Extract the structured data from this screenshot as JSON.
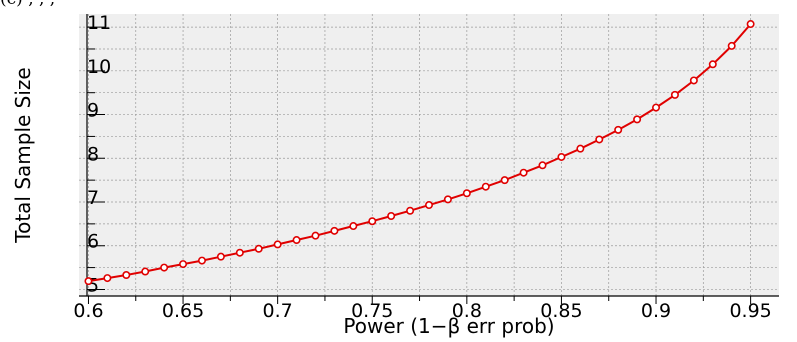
{
  "top_caption": "(c)          ,                                                  ,                          ,        ",
  "chart_data": {
    "type": "line",
    "title": "",
    "xlabel": "Power (1−β err prob)",
    "ylabel": "Total Sample Size",
    "xlim": [
      0.595,
      0.965
    ],
    "ylim": [
      4.85,
      11.3
    ],
    "x_ticks": [
      0.6,
      0.65,
      0.7,
      0.75,
      0.8,
      0.85,
      0.9,
      0.95
    ],
    "x_tick_labels": [
      "0.6",
      "0.65",
      "0.7",
      "0.75",
      "0.8",
      "0.85",
      "0.9",
      "0.95"
    ],
    "y_ticks": [
      5,
      6,
      7,
      8,
      9,
      10,
      11
    ],
    "y_tick_labels": [
      "5",
      "6",
      "7",
      "8",
      "9",
      "10",
      "11"
    ],
    "grid": true,
    "colors": {
      "line": "#e00000",
      "plot_bg": "#efefef",
      "grid": "#9a9a9a"
    },
    "series": [
      {
        "x": [
          0.6,
          0.61,
          0.62,
          0.63,
          0.64,
          0.65,
          0.66,
          0.67,
          0.68,
          0.69,
          0.7,
          0.71,
          0.72,
          0.73,
          0.74,
          0.75,
          0.76,
          0.77,
          0.78,
          0.79,
          0.8,
          0.81,
          0.82,
          0.83,
          0.84,
          0.85,
          0.86,
          0.87,
          0.88,
          0.89,
          0.9,
          0.91,
          0.92,
          0.93,
          0.94,
          0.95
        ],
        "values": [
          5.19,
          5.26,
          5.33,
          5.41,
          5.5,
          5.58,
          5.66,
          5.75,
          5.84,
          5.93,
          6.03,
          6.13,
          6.23,
          6.34,
          6.45,
          6.56,
          6.68,
          6.8,
          6.93,
          7.06,
          7.2,
          7.35,
          7.5,
          7.67,
          7.84,
          8.03,
          8.22,
          8.43,
          8.65,
          8.89,
          9.16,
          9.45,
          9.78,
          10.15,
          10.57,
          11.07
        ]
      }
    ]
  }
}
